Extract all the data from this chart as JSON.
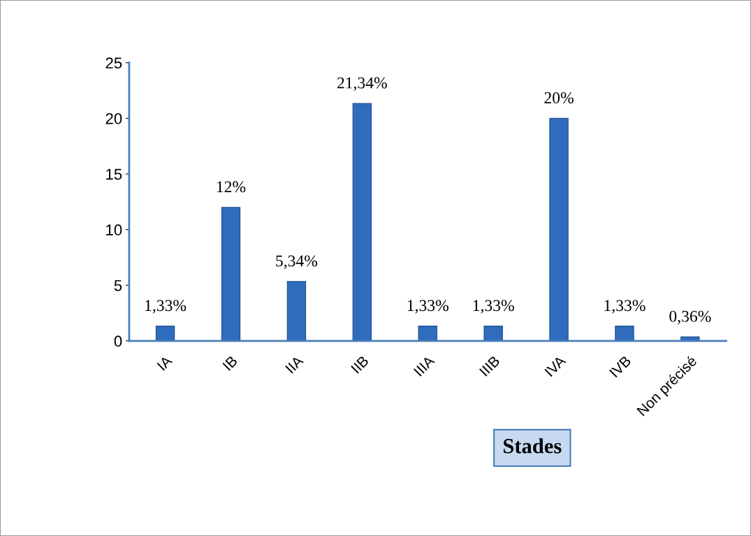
{
  "chart_data": {
    "type": "bar",
    "xlabel": "Stades",
    "categories": [
      "IA",
      "IB",
      "IIA",
      "IIB",
      "IIIA",
      "IIIB",
      "IVA",
      "IVB",
      "Non précisé"
    ],
    "values": [
      1.33,
      12,
      5.34,
      21.34,
      1.33,
      1.33,
      20,
      1.33,
      0.36
    ],
    "value_labels": [
      "1,33%",
      "12%",
      "5,34%",
      "21,34%",
      "1,33%",
      "1,33%",
      "20%",
      "1,33%",
      "0,36%"
    ],
    "color": "#2f6cbd",
    "ylim": [
      0,
      25
    ],
    "yticks": [
      0,
      5,
      10,
      15,
      20,
      25
    ],
    "grid": false,
    "legend": false
  }
}
